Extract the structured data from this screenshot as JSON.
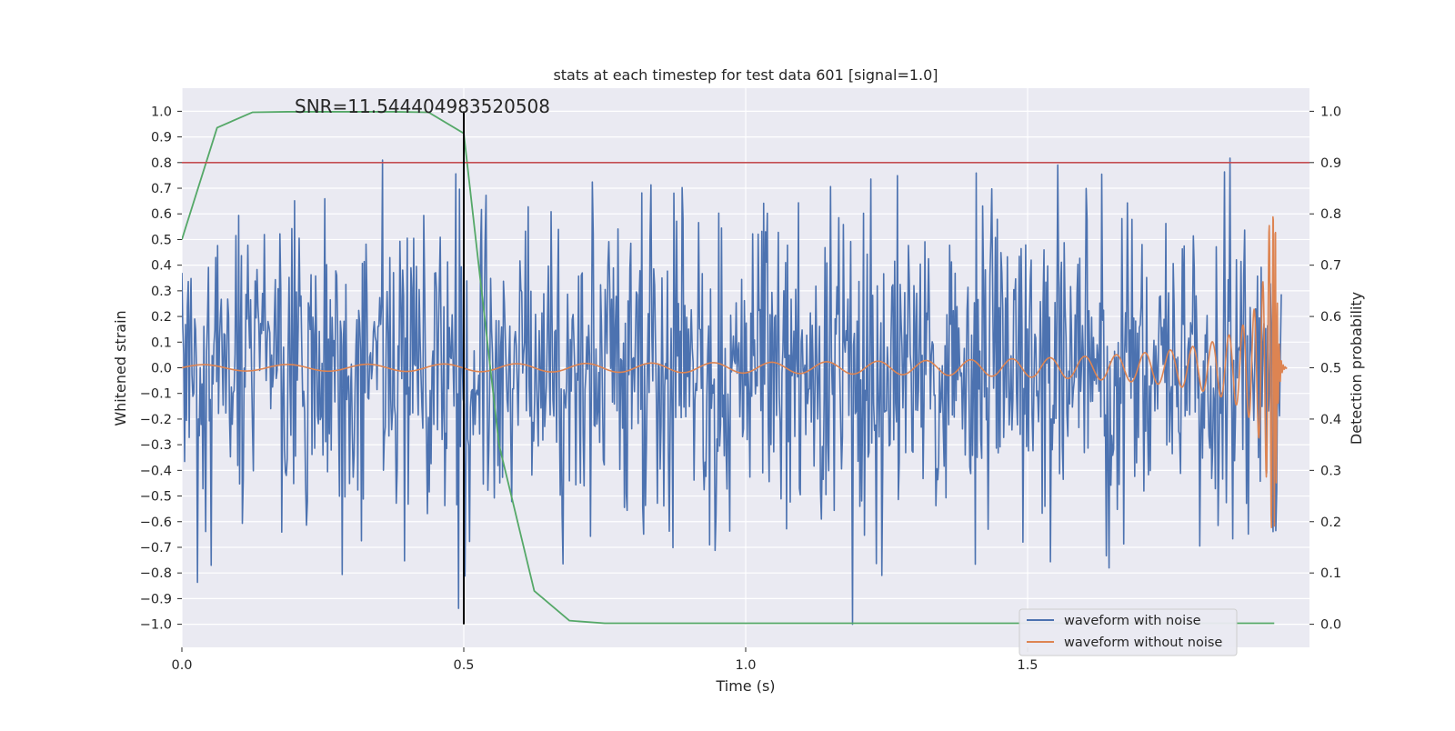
{
  "chart_data": {
    "type": "line",
    "title": "stats at each timestep for test data 601 [signal=1.0]",
    "xlabel": "Time (s)",
    "ylabel_left": "Whitened strain",
    "ylabel_right": "Detection probability",
    "xlim": [
      0.0,
      2.0
    ],
    "ylim_left": [
      -1.09,
      1.09
    ],
    "ylim_right": [
      -0.045,
      1.045
    ],
    "x_ticks": [
      "0.0",
      "0.5",
      "1.0",
      "1.5"
    ],
    "x_tick_values": [
      0.0,
      0.5,
      1.0,
      1.5
    ],
    "y_ticks_left": [
      "1.0",
      "0.9",
      "0.8",
      "0.7",
      "0.6",
      "0.5",
      "0.4",
      "0.3",
      "0.2",
      "0.1",
      "0.0",
      "−0.1",
      "−0.2",
      "−0.3",
      "−0.4",
      "−0.5",
      "−0.6",
      "−0.7",
      "−0.8",
      "−0.9",
      "−1.0"
    ],
    "y_tick_values_left": [
      1.0,
      0.9,
      0.8,
      0.7,
      0.6,
      0.5,
      0.4,
      0.3,
      0.2,
      0.1,
      0.0,
      -0.1,
      -0.2,
      -0.3,
      -0.4,
      -0.5,
      -0.6,
      -0.7,
      -0.8,
      -0.9,
      -1.0
    ],
    "y_ticks_right": [
      "1.0",
      "0.9",
      "0.8",
      "0.7",
      "0.6",
      "0.5",
      "0.4",
      "0.3",
      "0.2",
      "0.1",
      "0.0"
    ],
    "y_tick_values_right": [
      1.0,
      0.9,
      0.8,
      0.7,
      0.6,
      0.5,
      0.4,
      0.3,
      0.2,
      0.1,
      0.0
    ],
    "annotation": "SNR=11.544404983520508",
    "annotation_at": {
      "x": 0.2,
      "y": 1.0
    },
    "threshold": {
      "axis": "right",
      "value": 0.9,
      "color": "#c44e52"
    },
    "marker_line": {
      "x": 0.5,
      "y_range": [
        -1.0,
        1.0
      ],
      "color": "#000000"
    },
    "grid": true,
    "legend_position": "lower-right",
    "series": [
      {
        "name": "waveform with noise",
        "color": "#4c72b0",
        "axis": "left",
        "kind": "noise",
        "t_range": [
          0.0,
          1.95
        ],
        "sample_count": 1200,
        "approx_range": [
          -1.0,
          1.0
        ],
        "approx_std": 0.3
      },
      {
        "name": "waveform without noise",
        "color": "#dd8452",
        "axis": "left",
        "kind": "chirp",
        "t_range": [
          0.0,
          1.96
        ],
        "merger_time": 1.94,
        "peak_amplitude": 0.63,
        "min_value": -0.7
      },
      {
        "color": "#55a868",
        "axis": "right",
        "x": [
          0.0,
          0.0625,
          0.125,
          0.1875,
          0.25,
          0.3125,
          0.375,
          0.4375,
          0.5,
          0.5625,
          0.625,
          0.6875,
          0.75,
          0.8125,
          0.875,
          0.9375,
          1.0,
          1.0625,
          1.125,
          1.1875,
          1.25,
          1.3125,
          1.375,
          1.4375,
          1.5,
          1.5625,
          1.625,
          1.6875,
          1.75,
          1.8125,
          1.875,
          1.9375
        ],
        "y": [
          0.75,
          0.968,
          0.998,
          0.999,
          0.999,
          0.999,
          0.999,
          0.998,
          0.957,
          0.35,
          0.065,
          0.007,
          0.002,
          0.002,
          0.002,
          0.002,
          0.002,
          0.002,
          0.002,
          0.002,
          0.002,
          0.002,
          0.002,
          0.002,
          0.002,
          0.002,
          0.002,
          0.002,
          0.002,
          0.002,
          0.002,
          0.002
        ]
      }
    ]
  }
}
